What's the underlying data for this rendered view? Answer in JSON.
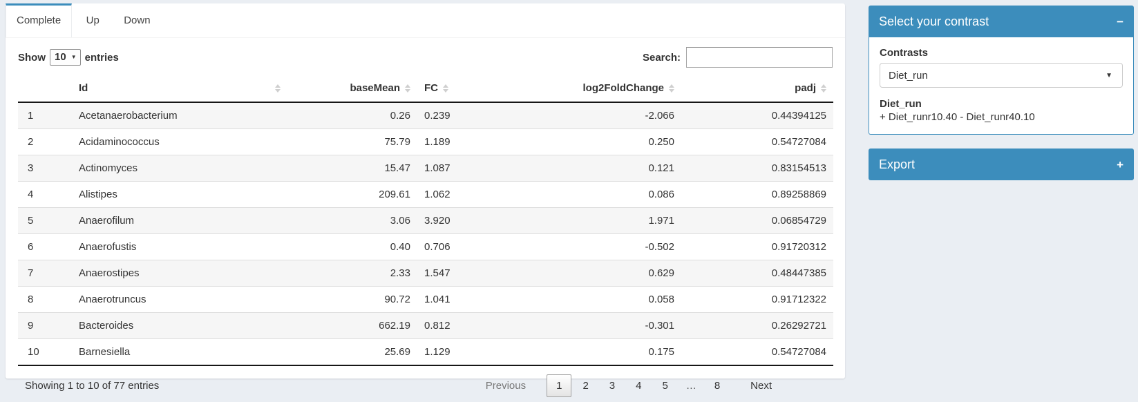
{
  "tabs": [
    {
      "label": "Complete",
      "active": true
    },
    {
      "label": "Up",
      "active": false
    },
    {
      "label": "Down",
      "active": false
    }
  ],
  "length_control": {
    "prefix": "Show",
    "selected": "10",
    "suffix": "entries"
  },
  "search": {
    "label": "Search:",
    "value": "",
    "placeholder": ""
  },
  "table": {
    "columns": [
      {
        "key": "rownum",
        "label": "",
        "sortable": false,
        "align": "left"
      },
      {
        "key": "id",
        "label": "Id",
        "sortable": true,
        "align": "left"
      },
      {
        "key": "baseMean",
        "label": "baseMean",
        "sortable": true,
        "align": "right"
      },
      {
        "key": "fc",
        "label": "FC",
        "sortable": true,
        "align": "left"
      },
      {
        "key": "log2fc",
        "label": "log2FoldChange",
        "sortable": true,
        "align": "right"
      },
      {
        "key": "padj",
        "label": "padj",
        "sortable": true,
        "align": "right"
      }
    ],
    "rows": [
      [
        "1",
        "Acetanaerobacterium",
        "0.26",
        "0.239",
        "-2.066",
        "0.44394125"
      ],
      [
        "2",
        "Acidaminococcus",
        "75.79",
        "1.189",
        "0.250",
        "0.54727084"
      ],
      [
        "3",
        "Actinomyces",
        "15.47",
        "1.087",
        "0.121",
        "0.83154513"
      ],
      [
        "4",
        "Alistipes",
        "209.61",
        "1.062",
        "0.086",
        "0.89258869"
      ],
      [
        "5",
        "Anaerofilum",
        "3.06",
        "3.920",
        "1.971",
        "0.06854729"
      ],
      [
        "6",
        "Anaerofustis",
        "0.40",
        "0.706",
        "-0.502",
        "0.91720312"
      ],
      [
        "7",
        "Anaerostipes",
        "2.33",
        "1.547",
        "0.629",
        "0.48447385"
      ],
      [
        "8",
        "Anaerotruncus",
        "90.72",
        "1.041",
        "0.058",
        "0.91712322"
      ],
      [
        "9",
        "Bacteroides",
        "662.19",
        "0.812",
        "-0.301",
        "0.26292721"
      ],
      [
        "10",
        "Barnesiella",
        "25.69",
        "1.129",
        "0.175",
        "0.54727084"
      ]
    ],
    "info": "Showing 1 to 10 of 77 entries",
    "pagination": {
      "previous": "Previous",
      "pages": [
        "1",
        "2",
        "3",
        "4",
        "5",
        "…",
        "8"
      ],
      "current": "1",
      "next": "Next"
    }
  },
  "contrast_panel": {
    "title": "Select your contrast",
    "contrasts_label": "Contrasts",
    "selected_contrast": "Diet_run",
    "detail_title": "Diet_run",
    "detail_formula": "+ Diet_runr10.40 - Diet_runr40.10"
  },
  "export_panel": {
    "title": "Export"
  },
  "icons": {
    "collapse_minus": "−",
    "expand_plus": "+",
    "select_caret": "▼",
    "length_caret": "▼"
  },
  "colors": {
    "accent": "#3c8dbc",
    "page_bg": "#eaeef3",
    "stripe": "#f6f6f6"
  }
}
